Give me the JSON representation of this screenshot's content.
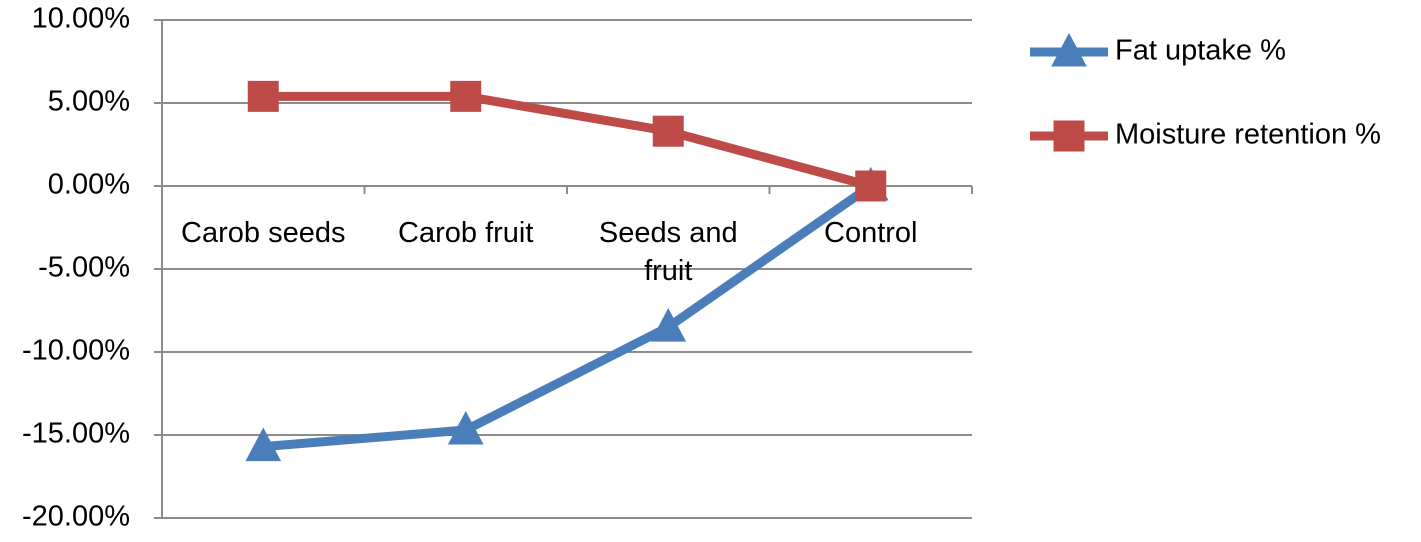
{
  "chart_data": {
    "type": "line",
    "categories": [
      "Carob seeds",
      "Carob fruit",
      "Seeds and fruit",
      "Control"
    ],
    "series": [
      {
        "name": "Fat uptake %",
        "color": "#4a7ebb",
        "marker": "triangle",
        "values": [
          -15.7,
          -14.7,
          -8.5,
          0
        ]
      },
      {
        "name": "Moisture retention %",
        "color": "#be4b48",
        "marker": "square",
        "values": [
          5.4,
          5.4,
          3.3,
          0
        ]
      }
    ],
    "ylim": [
      -20,
      10
    ],
    "yticks": [
      {
        "value": -20,
        "label": "-20.00%"
      },
      {
        "value": -15,
        "label": "-15.00%"
      },
      {
        "value": -10,
        "label": "-10.00%"
      },
      {
        "value": -5,
        "label": "-5.00%"
      },
      {
        "value": 0,
        "label": "0.00%"
      },
      {
        "value": 5,
        "label": "5.00%"
      },
      {
        "value": 10,
        "label": "10.00%"
      }
    ],
    "grid": true,
    "legend": "right"
  }
}
